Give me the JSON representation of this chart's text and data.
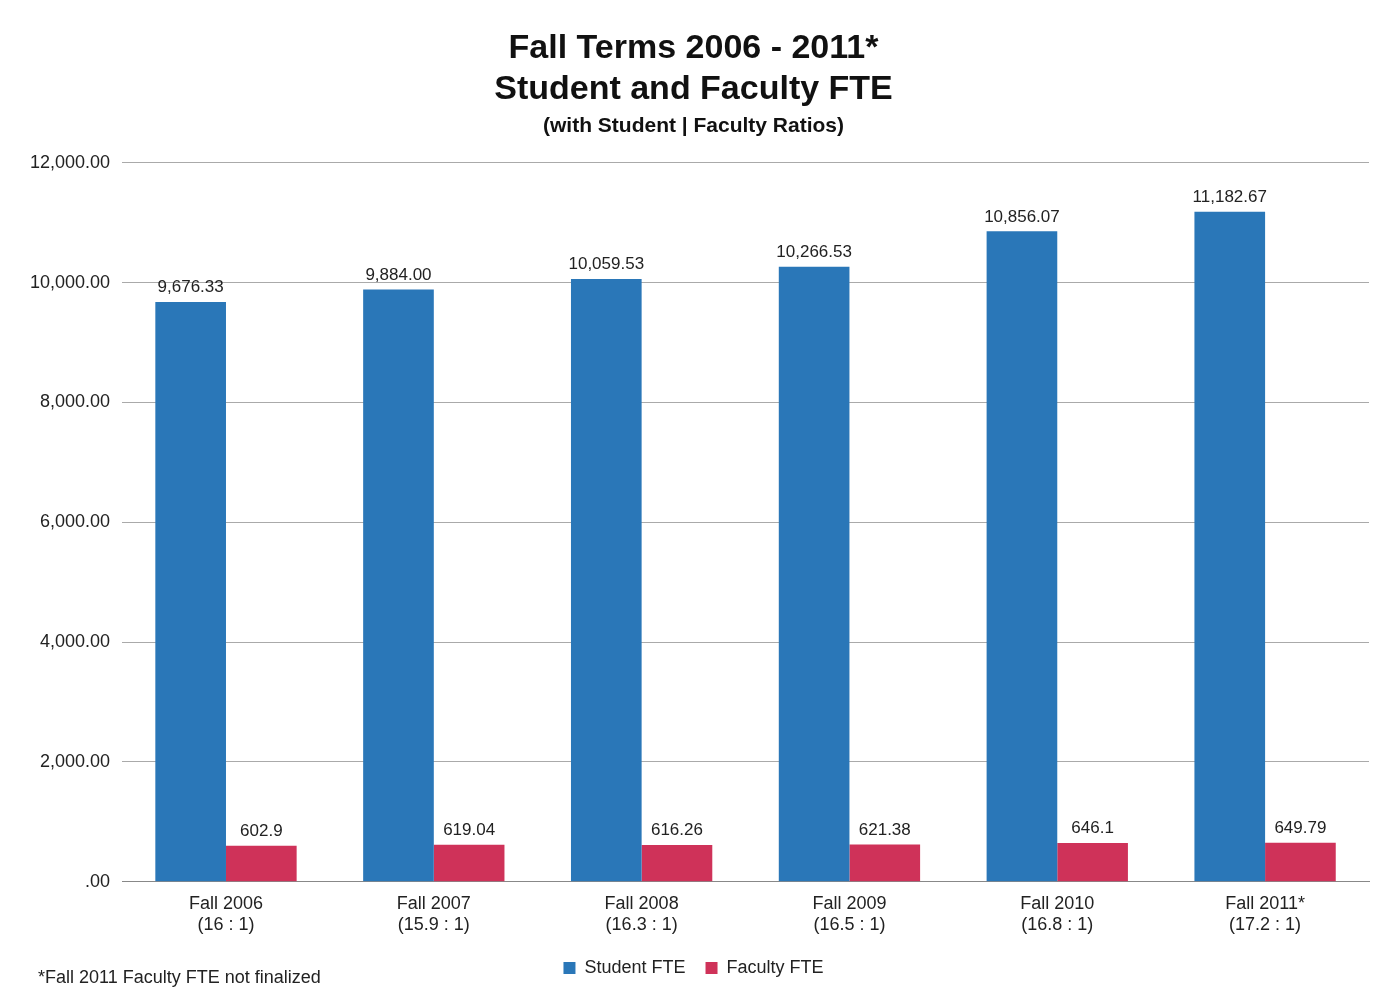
{
  "chart_data": {
    "type": "bar",
    "title": "Fall Terms 2006 - 2011*\nStudent and Faculty FTE",
    "subtitle": "(with Student | Faculty Ratios)",
    "categories": [
      "Fall 2006\n(16 : 1)",
      "Fall 2007\n(15.9 : 1)",
      "Fall 2008\n(16.3 : 1)",
      "Fall 2009\n(16.5 : 1)",
      "Fall 2010\n(16.8 : 1)",
      "Fall 2011*\n(17.2 : 1)"
    ],
    "series": [
      {
        "name": "Student FTE",
        "color": "#2a77b8",
        "values": [
          9676.33,
          9884.0,
          10059.53,
          10266.53,
          10856.07,
          11182.67
        ],
        "value_labels": [
          "9,676.33",
          "9,884.00",
          "10,059.53",
          "10,266.53",
          "10,856.07",
          "11,182.67"
        ]
      },
      {
        "name": "Faculty FTE",
        "color": "#cf3259",
        "values": [
          602.9,
          619.04,
          616.26,
          621.38,
          646.1,
          649.79
        ],
        "value_labels": [
          "602.9",
          "619.04",
          "616.26",
          "621.38",
          "646.1",
          "649.79"
        ]
      }
    ],
    "ylim": [
      0,
      12000
    ],
    "yticks": [
      {
        "value": 0,
        "label": ".00"
      },
      {
        "value": 2000,
        "label": "2,000.00"
      },
      {
        "value": 4000,
        "label": "4,000.00"
      },
      {
        "value": 6000,
        "label": "6,000.00"
      },
      {
        "value": 8000,
        "label": "8,000.00"
      },
      {
        "value": 10000,
        "label": "10,000.00"
      },
      {
        "value": 12000,
        "label": "12,000.00"
      }
    ],
    "grid": "y",
    "legend": "bottom",
    "annotations": [
      "*Fall 2011 Faculty FTE not finalized"
    ]
  }
}
